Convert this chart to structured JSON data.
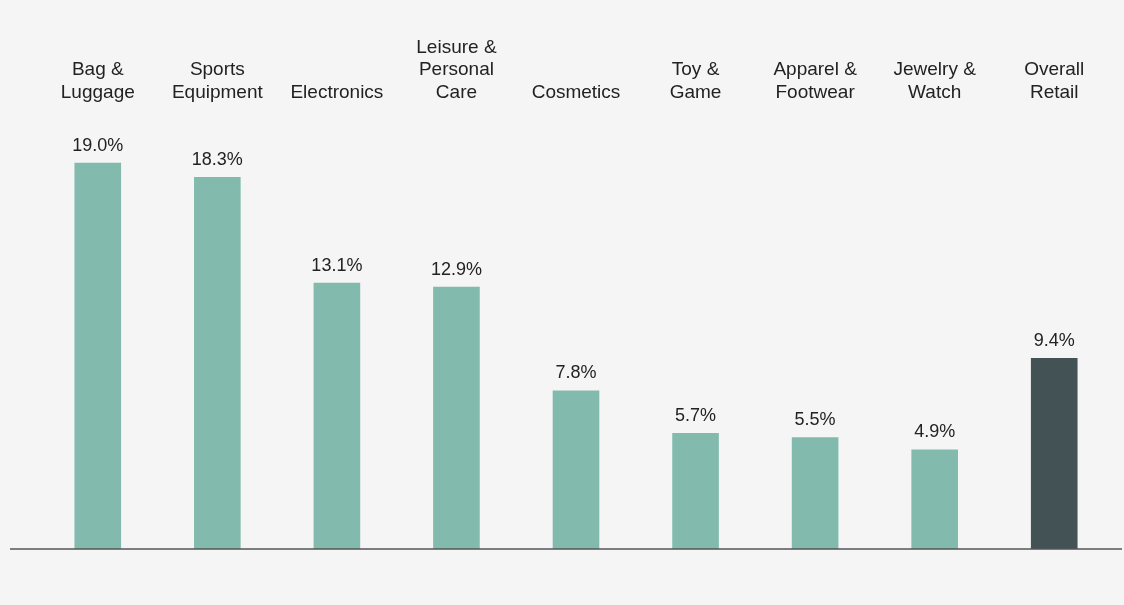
{
  "chart_data": {
    "type": "bar",
    "categories": [
      "Bag & Luggage",
      "Sports Equipment",
      "Electronics",
      "Leisure & Personal Care",
      "Cosmetics",
      "Toy & Game",
      "Apparel & Footwear",
      "Jewelry & Watch",
      "Overall Retail"
    ],
    "values": [
      19.0,
      18.3,
      13.1,
      12.9,
      7.8,
      5.7,
      5.5,
      4.9,
      9.4
    ],
    "colors": [
      "#82bbad",
      "#82bbad",
      "#82bbad",
      "#82bbad",
      "#82bbad",
      "#82bbad",
      "#82bbad",
      "#82bbad",
      "#435254"
    ],
    "value_labels": [
      "19.0%",
      "18.3%",
      "13.1%",
      "12.9%",
      "7.8%",
      "5.7%",
      "5.5%",
      "4.9%",
      "9.4%"
    ],
    "tick_labels": "x"
  }
}
